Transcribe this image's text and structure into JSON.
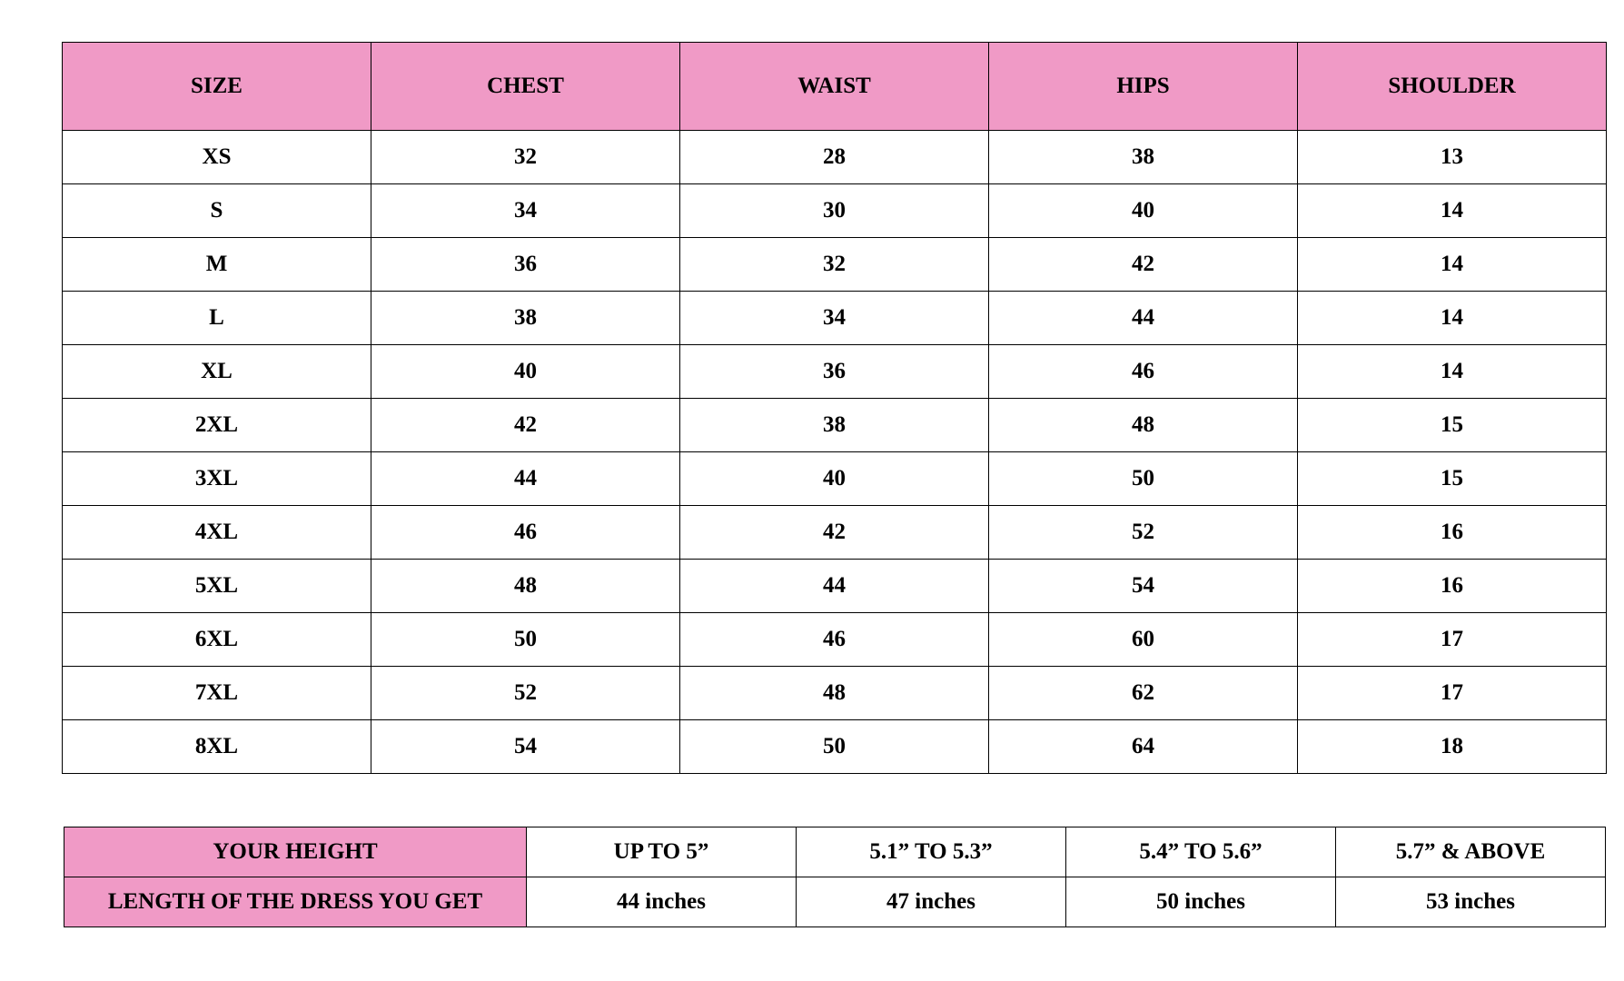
{
  "size_chart": {
    "headers": [
      "SIZE",
      "CHEST",
      "WAIST",
      "HIPS",
      "SHOULDER"
    ],
    "rows": [
      [
        "XS",
        "32",
        "28",
        "38",
        "13"
      ],
      [
        "S",
        "34",
        "30",
        "40",
        "14"
      ],
      [
        "M",
        "36",
        "32",
        "42",
        "14"
      ],
      [
        "L",
        "38",
        "34",
        "44",
        "14"
      ],
      [
        "XL",
        "40",
        "36",
        "46",
        "14"
      ],
      [
        "2XL",
        "42",
        "38",
        "48",
        "15"
      ],
      [
        "3XL",
        "44",
        "40",
        "50",
        "15"
      ],
      [
        "4XL",
        "46",
        "42",
        "52",
        "16"
      ],
      [
        "5XL",
        "48",
        "44",
        "54",
        "16"
      ],
      [
        "6XL",
        "50",
        "46",
        "60",
        "17"
      ],
      [
        "7XL",
        "52",
        "48",
        "62",
        "17"
      ],
      [
        "8XL",
        "54",
        "50",
        "64",
        "18"
      ]
    ]
  },
  "length_chart": {
    "height_label": "YOUR HEIGHT",
    "heights": [
      "UP TO 5”",
      "5.1” TO 5.3”",
      "5.4” TO 5.6”",
      "5.7” & ABOVE"
    ],
    "length_label": "LENGTH OF THE DRESS YOU GET",
    "lengths": [
      "44 inches",
      "47 inches",
      "50 inches",
      "53 inches"
    ]
  },
  "colors": {
    "header_pink": "#f09ac6"
  }
}
